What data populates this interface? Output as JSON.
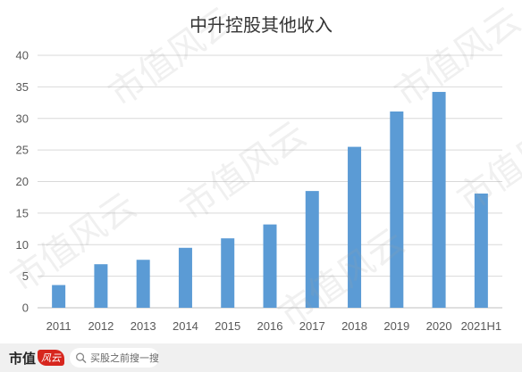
{
  "chart_data": {
    "type": "bar",
    "title": "中升控股其他收入",
    "categories": [
      "2011",
      "2012",
      "2013",
      "2014",
      "2015",
      "2016",
      "2017",
      "2018",
      "2019",
      "2020",
      "2021H1"
    ],
    "values": [
      3.6,
      6.9,
      7.6,
      9.5,
      11.0,
      13.2,
      18.5,
      25.5,
      31.1,
      34.2,
      18.1
    ],
    "ylim": [
      0,
      40
    ],
    "yticks": [
      0,
      5,
      10,
      15,
      20,
      25,
      30,
      35,
      40
    ],
    "grid": true,
    "legend": "none",
    "bar_color": "#5b9bd5"
  },
  "watermark": "市值风云",
  "footer": {
    "brand": "市值",
    "brand_logo": "风云",
    "search_placeholder": "买股之前搜一搜"
  }
}
